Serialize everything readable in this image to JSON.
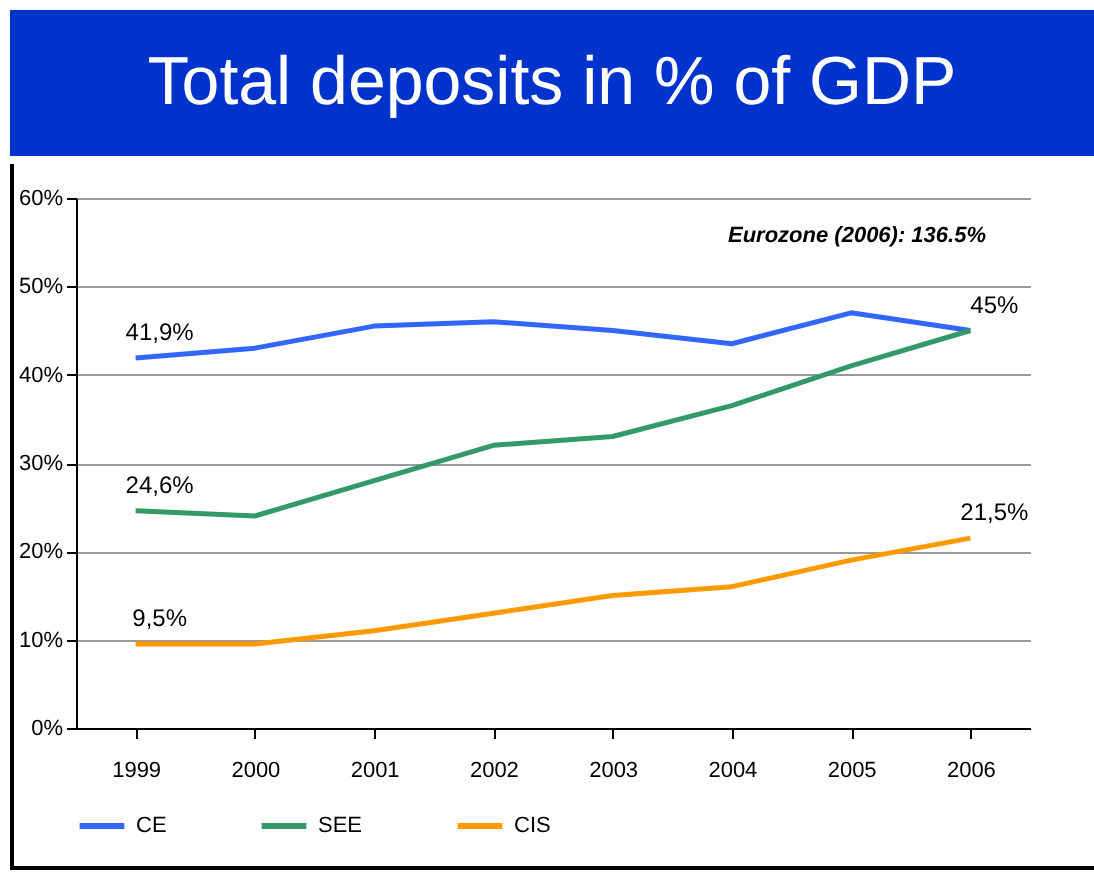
{
  "chart_data": {
    "type": "line",
    "title": "Total deposits in % of GDP",
    "categories": [
      "1999",
      "2000",
      "2001",
      "2002",
      "2003",
      "2004",
      "2005",
      "2006"
    ],
    "series": [
      {
        "name": "CE",
        "color": "#3366ff",
        "values": [
          41.9,
          43,
          45.5,
          46,
          45,
          43.5,
          47,
          45
        ],
        "value_labels": [
          "41,9%",
          null,
          null,
          null,
          null,
          null,
          null,
          "45%"
        ]
      },
      {
        "name": "SEE",
        "color": "#339966",
        "values": [
          24.6,
          24,
          28,
          32,
          33,
          36.5,
          41,
          45
        ],
        "value_labels": [
          "24,6%",
          null,
          null,
          null,
          null,
          null,
          null,
          null
        ]
      },
      {
        "name": "CIS",
        "color": "#ff9900",
        "values": [
          9.5,
          9.5,
          11,
          13,
          15,
          16,
          19,
          21.5
        ],
        "value_labels": [
          "9,5%",
          null,
          null,
          null,
          null,
          null,
          null,
          "21,5%"
        ]
      }
    ],
    "ylim": [
      0,
      60
    ],
    "yticks": [
      {
        "value": 0,
        "label": "0%"
      },
      {
        "value": 10,
        "label": "10%"
      },
      {
        "value": 20,
        "label": "20%"
      },
      {
        "value": 30,
        "label": "30%"
      },
      {
        "value": 40,
        "label": "40%"
      },
      {
        "value": 50,
        "label": "50%"
      },
      {
        "value": 60,
        "label": "60%"
      }
    ],
    "annotations": [
      "Eurozone (2006): 136.5%"
    ],
    "grid": "y",
    "legend": "bottom",
    "marker": "none",
    "line_style": "solid"
  }
}
